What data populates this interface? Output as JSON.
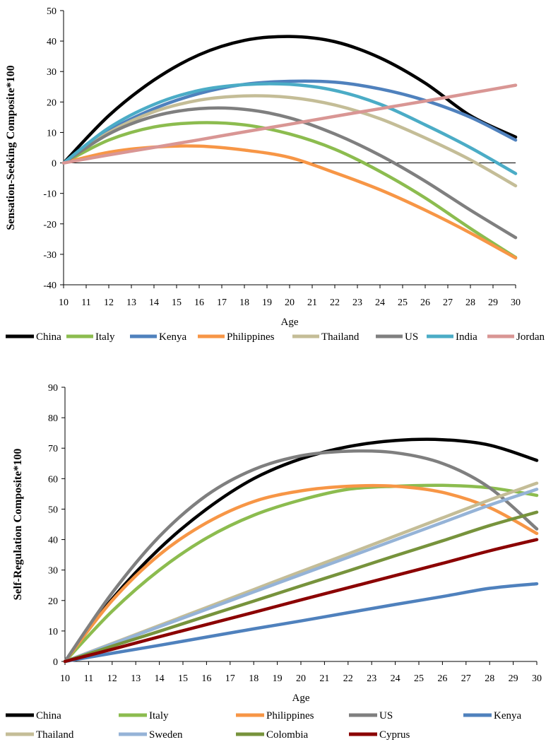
{
  "chart_data": [
    {
      "type": "line",
      "ylabel": "Sensation-Seeking Composite*100",
      "xlabel": "Age",
      "ylim": [
        -40,
        50
      ],
      "yticks": [
        -40,
        -30,
        -20,
        -10,
        0,
        10,
        20,
        30,
        40,
        50
      ],
      "xlim": [
        10,
        30
      ],
      "xticks": [
        10,
        11,
        12,
        13,
        14,
        15,
        16,
        17,
        18,
        19,
        20,
        21,
        22,
        23,
        24,
        25,
        26,
        27,
        28,
        29,
        30
      ],
      "legend_position": "bottom",
      "x": [
        10,
        12,
        14,
        16,
        18,
        20,
        22,
        24,
        26,
        28,
        30
      ],
      "series": [
        {
          "name": "China",
          "color": "#000000",
          "values": [
            0,
            15.5,
            27.2,
            35.5,
            40.2,
            41.5,
            39.8,
            34.5,
            26.2,
            15.5,
            8.5
          ]
        },
        {
          "name": "Italy",
          "color": "#8cbc4f",
          "values": [
            0,
            7.5,
            11.8,
            13.2,
            12.5,
            9.5,
            4.5,
            -2.8,
            -11.5,
            -21.5,
            -31
          ]
        },
        {
          "name": "Kenya",
          "color": "#4f81bd",
          "values": [
            0,
            10.5,
            17.8,
            22.8,
            25.8,
            26.8,
            26.5,
            24.3,
            20.5,
            15,
            7.5
          ]
        },
        {
          "name": "Philippines",
          "color": "#f79646",
          "values": [
            0,
            3.5,
            5.2,
            5.5,
            4.2,
            1.8,
            -3.2,
            -8.8,
            -15.5,
            -23,
            -31.2
          ]
        },
        {
          "name": "Thailand",
          "color": "#c4bd97",
          "values": [
            0,
            10,
            16.8,
            20.6,
            22,
            21.5,
            19,
            14.5,
            8.2,
            1,
            -7.5
          ]
        },
        {
          "name": "US",
          "color": "#7f7f7f",
          "values": [
            0,
            9.5,
            15.3,
            17.8,
            17.6,
            14.8,
            9.5,
            2.5,
            -6,
            -15.5,
            -24.5
          ]
        },
        {
          "name": "India",
          "color": "#4bacc6",
          "values": [
            0,
            11.5,
            19.2,
            23.8,
            25.7,
            25.8,
            23.8,
            19.3,
            12.5,
            5,
            -3.5
          ]
        },
        {
          "name": "Jordan",
          "color": "#d99694",
          "values": [
            0,
            2.6,
            5.1,
            7.6,
            10.2,
            12.7,
            15.3,
            17.8,
            20.3,
            22.9,
            25.5
          ]
        }
      ]
    },
    {
      "type": "line",
      "ylabel": "Self-Regulation Composite*100",
      "xlabel": "Age",
      "ylim": [
        0,
        90
      ],
      "yticks": [
        0,
        10,
        20,
        30,
        40,
        50,
        60,
        70,
        80,
        90
      ],
      "xlim": [
        10,
        30
      ],
      "xticks": [
        10,
        11,
        12,
        13,
        14,
        15,
        16,
        17,
        18,
        19,
        20,
        21,
        22,
        23,
        24,
        25,
        26,
        27,
        28,
        29,
        30
      ],
      "legend_position": "bottom",
      "x": [
        10,
        12,
        14,
        16,
        18,
        20,
        22,
        24,
        26,
        28,
        30
      ],
      "series": [
        {
          "name": "China",
          "color": "#000000",
          "values": [
            0,
            20.5,
            37,
            50,
            60,
            66.5,
            70.5,
            72.5,
            72.8,
            71,
            66
          ]
        },
        {
          "name": "Italy",
          "color": "#8cbc4f",
          "values": [
            0,
            16.5,
            30,
            40.5,
            48,
            53,
            56.5,
            57.5,
            57.8,
            57,
            54.5
          ]
        },
        {
          "name": "Philippines",
          "color": "#f79646",
          "values": [
            0,
            20,
            35,
            45.5,
            52.5,
            56,
            57.5,
            57.5,
            55.5,
            50.5,
            42
          ]
        },
        {
          "name": "US",
          "color": "#7f7f7f",
          "values": [
            0,
            22.5,
            41,
            54.5,
            63,
            67.5,
            69,
            68.5,
            65,
            57,
            43.5
          ]
        },
        {
          "name": "Kenya",
          "color": "#4f81bd",
          "values": [
            0,
            2.7,
            5.3,
            8,
            10.7,
            13.3,
            16,
            18.7,
            21.3,
            24,
            25.5
          ]
        },
        {
          "name": "Thailand",
          "color": "#c4bd97",
          "values": [
            0,
            5.9,
            11.8,
            17.7,
            23.6,
            29.5,
            35.3,
            41.2,
            47.1,
            53,
            58.5
          ]
        },
        {
          "name": "Sweden",
          "color": "#95b3d7",
          "values": [
            0,
            5.7,
            11.4,
            17.1,
            22.8,
            28.5,
            34.2,
            39.9,
            45.6,
            51.3,
            56.5
          ]
        },
        {
          "name": "Colombia",
          "color": "#77933c",
          "values": [
            0,
            5,
            9.9,
            14.9,
            19.8,
            24.8,
            29.7,
            34.7,
            39.6,
            44.6,
            49
          ]
        },
        {
          "name": "Cyprus",
          "color": "#8b0000",
          "values": [
            0,
            4,
            8.1,
            12.1,
            16.1,
            20.2,
            24.2,
            28.2,
            32.2,
            36.3,
            40
          ]
        }
      ]
    }
  ]
}
